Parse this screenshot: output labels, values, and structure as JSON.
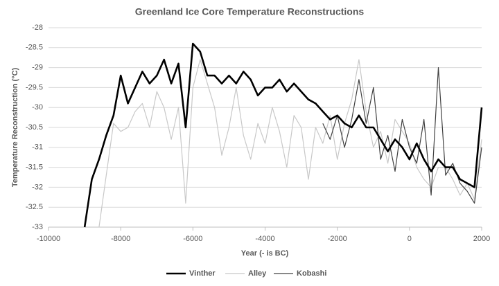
{
  "chart_data": {
    "type": "line",
    "title": "Greenland Ice Core Temperature Reconstructions",
    "x_label": "Year (- is BC)",
    "y_label": "Temperature Reconstruction (°C)",
    "xlim": [
      -10000,
      2000
    ],
    "xticks": [
      -10000,
      -8000,
      -6000,
      -4000,
      -2000,
      0,
      2000
    ],
    "ylim": [
      -33,
      -28
    ],
    "yticks": [
      -33,
      -32.5,
      -32,
      -31.5,
      -31,
      -30.5,
      -30,
      -29.5,
      -29,
      -28.5,
      -28
    ],
    "grid": true,
    "legend": "bottom",
    "x": [
      -9000,
      -8800,
      -8600,
      -8400,
      -8200,
      -8000,
      -7800,
      -7600,
      -7400,
      -7200,
      -7000,
      -6800,
      -6600,
      -6400,
      -6200,
      -6000,
      -5800,
      -5600,
      -5400,
      -5200,
      -5000,
      -4800,
      -4600,
      -4400,
      -4200,
      -4000,
      -3800,
      -3600,
      -3400,
      -3200,
      -3000,
      -2800,
      -2600,
      -2400,
      -2200,
      -2000,
      -1800,
      -1600,
      -1400,
      -1200,
      -1000,
      -800,
      -600,
      -400,
      -200,
      0,
      200,
      400,
      600,
      800,
      1000,
      1200,
      1400,
      1600,
      1800,
      2000
    ],
    "series": [
      {
        "name": "Vinther",
        "color": "#000000",
        "width": 2.6,
        "values": [
          -33,
          -31.8,
          -31.3,
          -30.7,
          -30.2,
          -29.2,
          -29.9,
          -29.5,
          -29.1,
          -29.4,
          -29.2,
          -28.8,
          -29.4,
          -28.9,
          -30.5,
          -28.4,
          -28.6,
          -29.2,
          -29.2,
          -29.4,
          -29.2,
          -29.4,
          -29.1,
          -29.3,
          -29.7,
          -29.5,
          -29.5,
          -29.3,
          -29.6,
          -29.4,
          -29.6,
          -29.8,
          -29.9,
          -30.1,
          -30.3,
          -30.2,
          -30.4,
          -30.5,
          -30.2,
          -30.5,
          -30.5,
          -30.8,
          -31.1,
          -30.8,
          -31.0,
          -31.3,
          -30.9,
          -31.3,
          -31.6,
          -31.3,
          -31.5,
          -31.5,
          -31.8,
          -31.9,
          -32.0,
          -30.0
        ]
      },
      {
        "name": "Alley",
        "color": "#c8c8c8",
        "width": 1.2,
        "values": [
          null,
          null,
          -33,
          -31.7,
          -30.4,
          -30.6,
          -30.5,
          -30.1,
          -29.9,
          -30.5,
          -29.6,
          -30.0,
          -30.8,
          -30.0,
          -32.4,
          -29.5,
          -28.8,
          -29.4,
          -30.0,
          -31.2,
          -30.5,
          -29.5,
          -30.7,
          -31.3,
          -30.4,
          -30.9,
          -30.0,
          -30.6,
          -31.5,
          -30.2,
          -30.5,
          -31.8,
          -30.5,
          -30.9,
          -30.2,
          -31.3,
          -30.4,
          -29.8,
          -28.8,
          -30.1,
          -31.0,
          -30.6,
          -31.4,
          -30.3,
          -30.6,
          -30.9,
          -31.5,
          -31.8,
          -32.0,
          -31.5,
          -31.5,
          -31.8,
          -32.2,
          -31.9,
          -32.3,
          -30.8
        ]
      },
      {
        "name": "Kobashi",
        "color": "#404040",
        "width": 1.2,
        "values": [
          null,
          null,
          null,
          null,
          null,
          null,
          null,
          null,
          null,
          null,
          null,
          null,
          null,
          null,
          null,
          null,
          null,
          null,
          null,
          null,
          null,
          null,
          null,
          null,
          null,
          null,
          null,
          null,
          null,
          null,
          null,
          null,
          null,
          -30.4,
          -30.8,
          -30.2,
          -31.0,
          -30.3,
          -29.3,
          -30.4,
          -29.5,
          -31.3,
          -30.7,
          -31.6,
          -30.3,
          -31.0,
          -31.4,
          -30.3,
          -32.2,
          -29.0,
          -31.7,
          -31.4,
          -31.9,
          -32.1,
          -32.4,
          -31.0
        ]
      }
    ]
  }
}
